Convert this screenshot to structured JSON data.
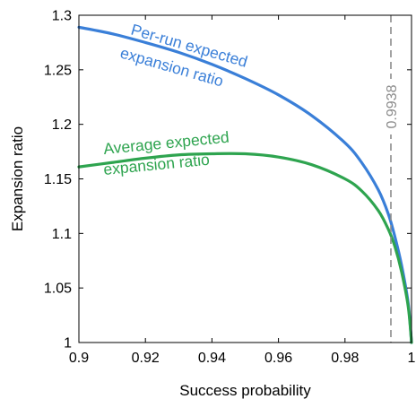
{
  "chart_data": {
    "type": "line",
    "xlabel": "Success probability",
    "ylabel": "Expansion ratio",
    "xlim": [
      0.9,
      1.0
    ],
    "ylim": [
      1.0,
      1.3
    ],
    "xticks": [
      "0.9",
      "0.92",
      "0.94",
      "0.96",
      "0.98",
      "1"
    ],
    "yticks": [
      "1",
      "1.05",
      "1.1",
      "1.15",
      "1.2",
      "1.25",
      "1.3"
    ],
    "grid": false,
    "series": [
      {
        "color": "#3a7fd8",
        "x": [
          0.9,
          0.91,
          0.92,
          0.93,
          0.94,
          0.95,
          0.96,
          0.97,
          0.98,
          0.985,
          0.99,
          0.993,
          0.995,
          0.997,
          0.999,
          1.0
        ],
        "y": [
          1.289,
          1.283,
          1.275,
          1.266,
          1.255,
          1.242,
          1.227,
          1.208,
          1.183,
          1.165,
          1.14,
          1.118,
          1.097,
          1.071,
          1.036,
          1.0
        ]
      },
      {
        "color": "#2ea44f",
        "x": [
          0.9,
          0.91,
          0.92,
          0.93,
          0.94,
          0.95,
          0.96,
          0.97,
          0.98,
          0.985,
          0.99,
          0.993,
          0.995,
          0.997,
          0.999,
          1.0
        ],
        "y": [
          1.161,
          1.165,
          1.169,
          1.172,
          1.173,
          1.173,
          1.17,
          1.163,
          1.15,
          1.139,
          1.121,
          1.104,
          1.088,
          1.065,
          1.033,
          1.0
        ]
      }
    ],
    "vline": {
      "x": 0.9938,
      "label": "0.9938",
      "color": "#8c8c8c"
    },
    "annotations": [
      {
        "lines": [
          "Per-run expected",
          "expansion ratio"
        ],
        "color": "#3a7fd8"
      },
      {
        "lines": [
          "Average expected",
          "expansion ratio"
        ],
        "color": "#2ea44f"
      }
    ]
  }
}
